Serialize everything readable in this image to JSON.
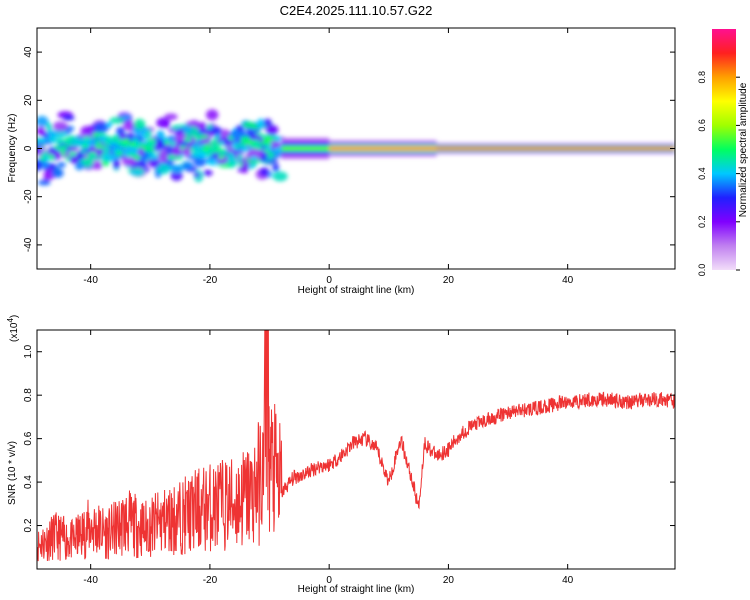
{
  "title": "C2E4.2025.111.10.57.G22",
  "chart_data": [
    {
      "type": "heatmap",
      "xlabel": "Height of straight line (km)",
      "ylabel": "Frequency (Hz)",
      "xlim": [
        -49,
        58
      ],
      "ylim": [
        -50,
        50
      ],
      "x_ticks": [
        -40,
        -20,
        0,
        20,
        40
      ],
      "y_ticks": [
        -40,
        -20,
        0,
        20,
        40
      ],
      "grid": false,
      "colorbar": {
        "label": "Normalized spectral amplitude",
        "range": [
          0.0,
          1.0
        ],
        "ticks": [
          0.0,
          0.2,
          0.4,
          0.6,
          0.8
        ],
        "tick_labels": [
          "0.0",
          "0.2",
          "0.4",
          "0.6",
          "0.8"
        ],
        "colors": [
          "#f2ddf9",
          "#c080f0",
          "#8000ff",
          "#2020ff",
          "#00c8ff",
          "#00ff60",
          "#a0ff00",
          "#ffff00",
          "#ffa000",
          "#ff2020",
          "#ff1090"
        ]
      },
      "band": [
        {
          "x": [
            -49,
            -8
          ],
          "center_hz": 0,
          "spread_hz": 10,
          "amplitude": 0.35
        },
        {
          "x": [
            -8,
            0
          ],
          "center_hz": 0,
          "spread_hz": 2,
          "amplitude": 0.55
        },
        {
          "x": [
            0,
            18
          ],
          "center_hz": 0,
          "spread_hz": 1.5,
          "amplitude": 0.8
        },
        {
          "x": [
            18,
            58
          ],
          "center_hz": 0,
          "spread_hz": 1,
          "amplitude": 0.85
        }
      ]
    },
    {
      "type": "line",
      "xlabel": "Height of straight line (km)",
      "ylabel": "SNR (10 * v/v)",
      "y_multiplier": "(x10",
      "y_multiplier_exp": "4",
      "y_multiplier_close": ")",
      "xlim": [
        -49,
        58
      ],
      "ylim": [
        0.0,
        1.1
      ],
      "x_ticks": [
        -40,
        -20,
        0,
        20,
        40
      ],
      "y_ticks": [
        0.2,
        0.4,
        0.6,
        0.8,
        1.0
      ],
      "grid": false,
      "color": "#ee3333",
      "series": [
        {
          "x": [
            -49,
            -46,
            -43,
            -40,
            -37,
            -34,
            -31,
            -28,
            -25,
            -22,
            -19,
            -16,
            -13,
            -11,
            -10.5,
            -10,
            -8,
            -6,
            -4,
            -2,
            0,
            2,
            4,
            6,
            8,
            10,
            12,
            14,
            15,
            16,
            18,
            20,
            22,
            24,
            26,
            28,
            30,
            32,
            35,
            38,
            41,
            44,
            47,
            50,
            53,
            56,
            58
          ],
          "y": [
            0.1,
            0.14,
            0.12,
            0.18,
            0.15,
            0.2,
            0.17,
            0.2,
            0.22,
            0.25,
            0.27,
            0.28,
            0.32,
            0.4,
            1.08,
            0.45,
            0.35,
            0.42,
            0.44,
            0.47,
            0.48,
            0.52,
            0.58,
            0.6,
            0.55,
            0.4,
            0.6,
            0.4,
            0.28,
            0.58,
            0.52,
            0.55,
            0.62,
            0.66,
            0.68,
            0.7,
            0.72,
            0.73,
            0.74,
            0.76,
            0.77,
            0.78,
            0.78,
            0.77,
            0.78,
            0.78,
            0.77
          ]
        }
      ]
    }
  ]
}
